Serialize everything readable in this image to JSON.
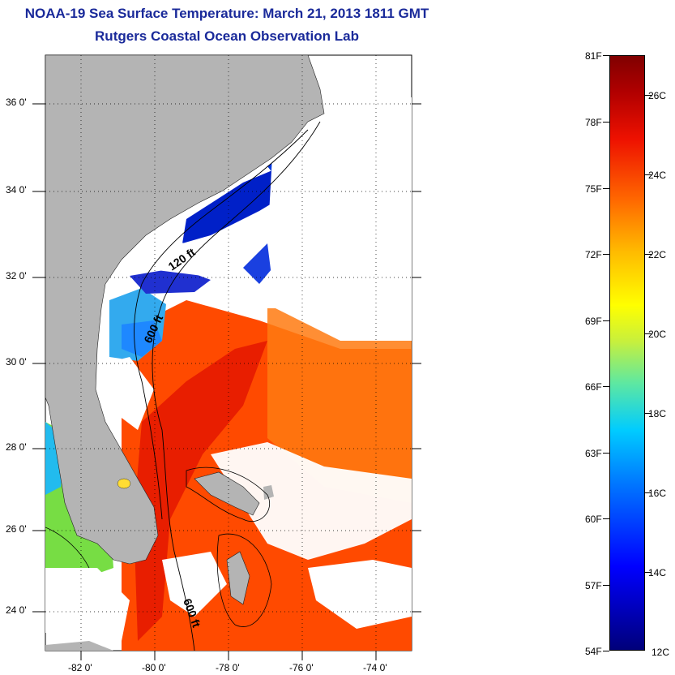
{
  "header": {
    "title": "NOAA-19 Sea Surface Temperature:  March 21, 2013 1811 GMT",
    "subtitle": "Rutgers Coastal Ocean Observation Lab"
  },
  "map": {
    "lat_labels": [
      "36 0'",
      "34 0'",
      "32 0'",
      "30 0'",
      "28 0'",
      "26 0'",
      "24 0'"
    ],
    "lon_labels": [
      "-82 0'",
      "-80 0'",
      "-78 0'",
      "-76 0'",
      "-74 0'"
    ],
    "contour_labels": [
      "120 ft",
      "600 ft",
      "600 ft"
    ],
    "colors": {
      "land": "#b4b4b4",
      "cloud": "#ffffff",
      "cold": "#0010c0",
      "warm": "#ee3300"
    }
  },
  "colorbar": {
    "fahrenheit": [
      "81F",
      "78F",
      "75F",
      "72F",
      "69F",
      "66F",
      "63F",
      "60F",
      "57F",
      "54F"
    ],
    "celsius": [
      "26C",
      "24C",
      "22C",
      "20C",
      "18C",
      "16C",
      "14C",
      "12C"
    ]
  }
}
